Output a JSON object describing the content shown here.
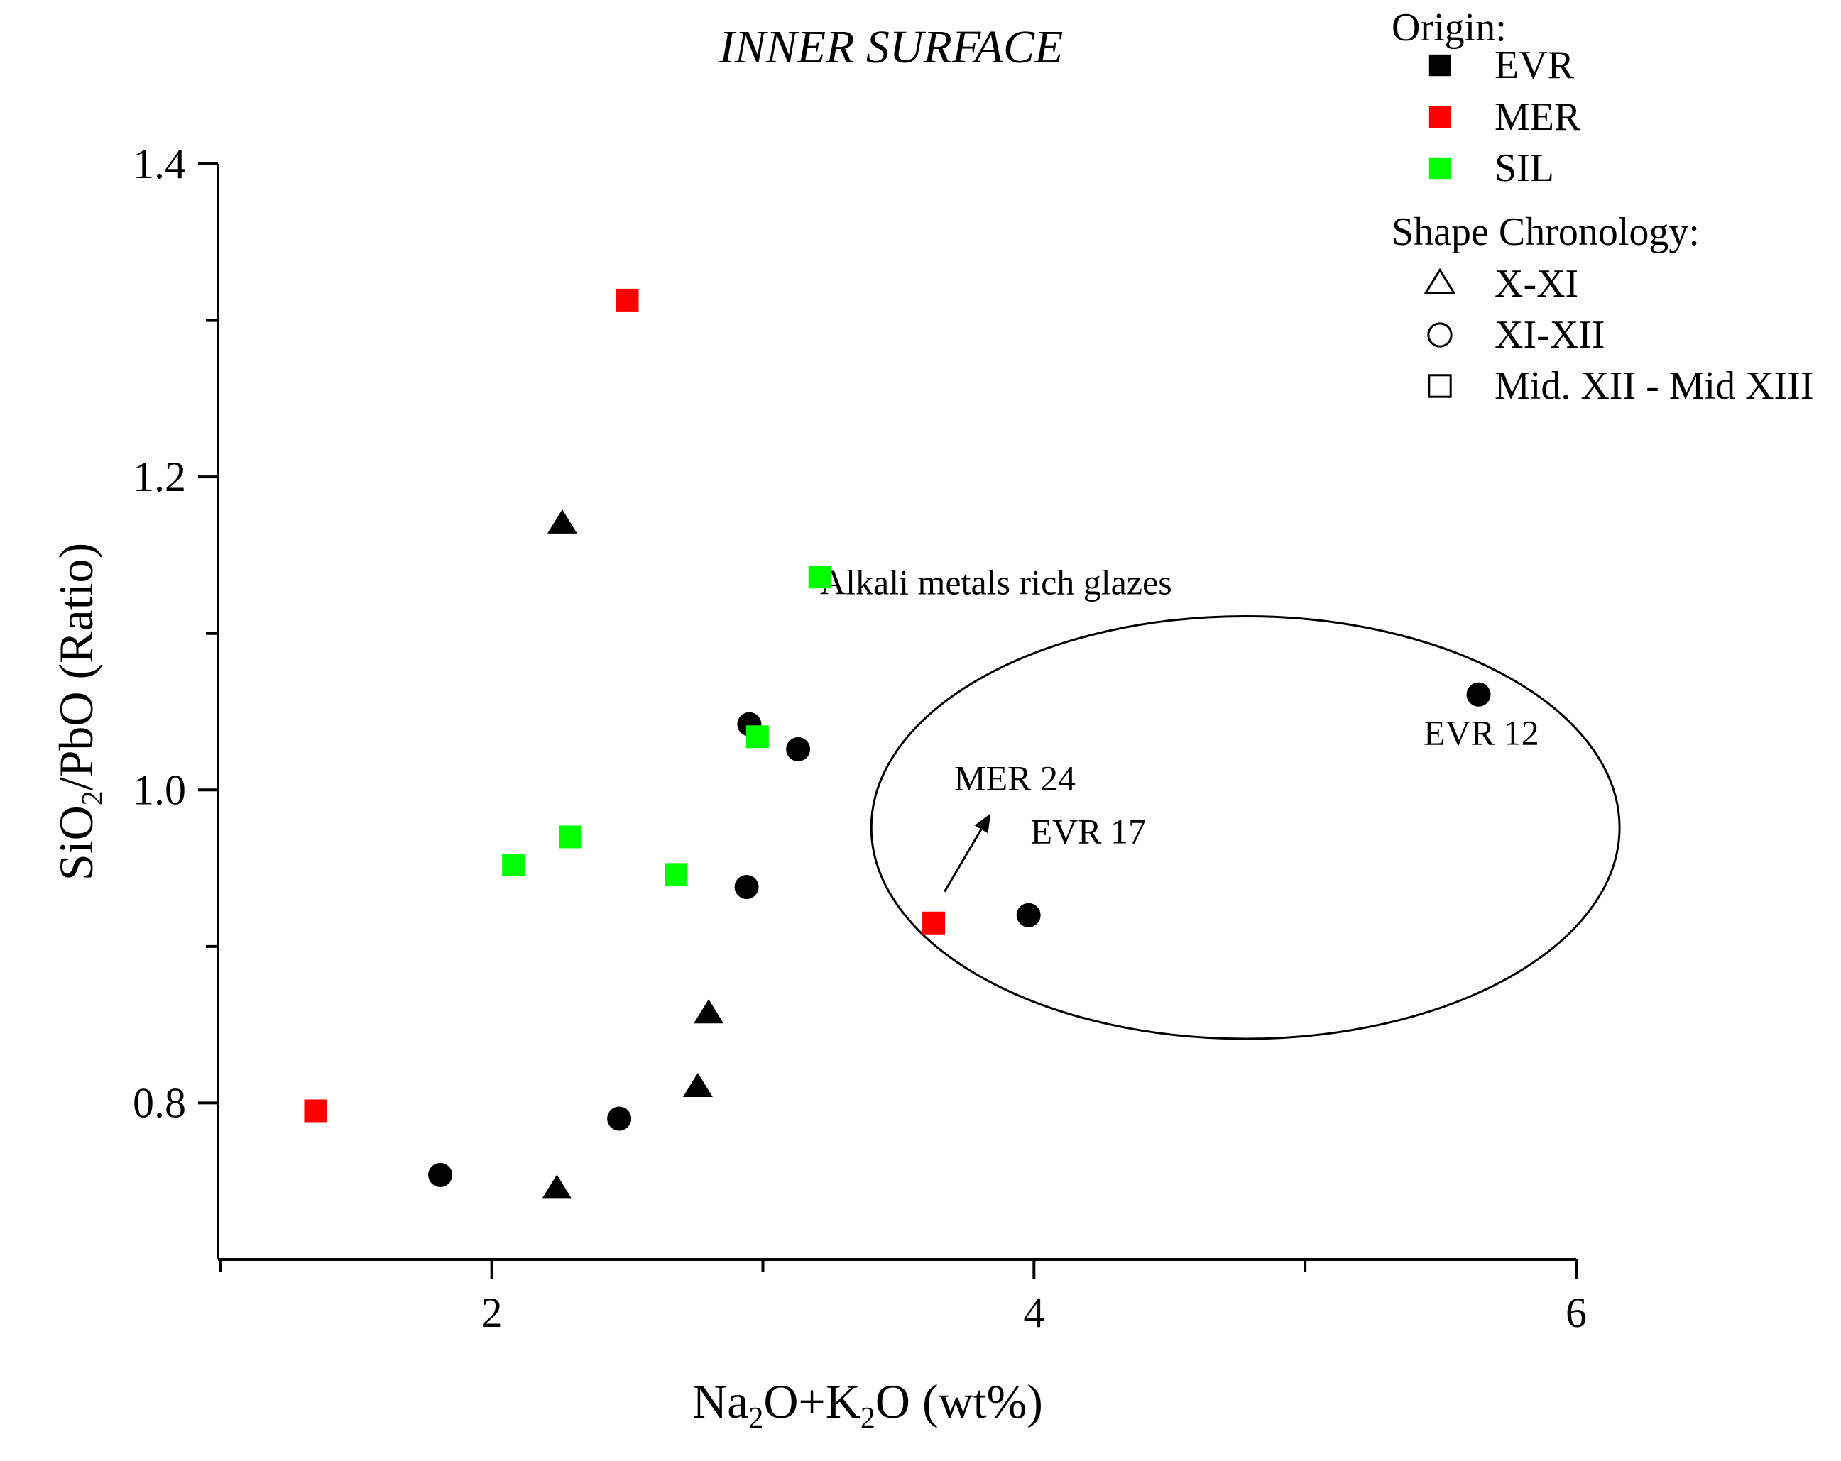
{
  "chart_data": {
    "type": "scatter",
    "title": "INNER SURFACE",
    "xlabel": {
      "parts": [
        "Na",
        "2",
        "O+K",
        "2",
        "O (wt%)"
      ]
    },
    "ylabel": {
      "parts": [
        "SiO",
        "2",
        "/PbO (Ratio)"
      ]
    },
    "xlim": [
      0.99,
      6.0
    ],
    "ylim": [
      0.7,
      1.4
    ],
    "x_ticks": [
      {
        "value": 2,
        "label": "2"
      },
      {
        "value": 4,
        "label": "4"
      },
      {
        "value": 6,
        "label": "6"
      }
    ],
    "x_minor_ticks": [
      1,
      3,
      5
    ],
    "y_ticks": [
      {
        "value": 0.8,
        "label": "0.8"
      },
      {
        "value": 1.0,
        "label": "1.0"
      },
      {
        "value": 1.2,
        "label": "1.2"
      },
      {
        "value": 1.4,
        "label": "1.4"
      }
    ],
    "y_minor_ticks": [
      0.9,
      1.1,
      1.3
    ],
    "colors": {
      "EVR": "#000000",
      "MER": "#ff0000",
      "SIL": "#00ff00"
    },
    "points": [
      {
        "origin": "EVR",
        "chronology": "X-XI",
        "x": 2.26,
        "y": 1.17
      },
      {
        "origin": "EVR",
        "chronology": "X-XI",
        "x": 2.8,
        "y": 0.857
      },
      {
        "origin": "EVR",
        "chronology": "X-XI",
        "x": 2.76,
        "y": 0.81
      },
      {
        "origin": "EVR",
        "chronology": "X-XI",
        "x": 2.24,
        "y": 0.745
      },
      {
        "origin": "EVR",
        "chronology": "XI-XII",
        "x": 2.95,
        "y": 1.042
      },
      {
        "origin": "EVR",
        "chronology": "XI-XII",
        "x": 3.13,
        "y": 1.026
      },
      {
        "origin": "EVR",
        "chronology": "XI-XII",
        "x": 2.94,
        "y": 0.938
      },
      {
        "origin": "EVR",
        "chronology": "XI-XII",
        "x": 2.47,
        "y": 0.79
      },
      {
        "origin": "EVR",
        "chronology": "XI-XII",
        "x": 1.81,
        "y": 0.754
      },
      {
        "origin": "EVR",
        "chronology": "XI-XII",
        "x": 3.98,
        "y": 0.92
      },
      {
        "origin": "EVR",
        "chronology": "XI-XII",
        "x": 5.64,
        "y": 1.061
      },
      {
        "origin": "MER",
        "chronology": "Mid. XII - Mid XIII",
        "x": 2.5,
        "y": 1.313
      },
      {
        "origin": "MER",
        "chronology": "Mid. XII - Mid XIII",
        "x": 3.63,
        "y": 0.915
      },
      {
        "origin": "MER",
        "chronology": "Mid. XII - Mid XIII",
        "x": 1.35,
        "y": 0.795
      },
      {
        "origin": "SIL",
        "chronology": "Mid. XII - Mid XIII",
        "x": 3.21,
        "y": 1.136
      },
      {
        "origin": "SIL",
        "chronology": "Mid. XII - Mid XIII",
        "x": 2.98,
        "y": 1.034
      },
      {
        "origin": "SIL",
        "chronology": "Mid. XII - Mid XIII",
        "x": 2.29,
        "y": 0.97
      },
      {
        "origin": "SIL",
        "chronology": "Mid. XII - Mid XIII",
        "x": 2.08,
        "y": 0.952
      },
      {
        "origin": "SIL",
        "chronology": "Mid. XII - Mid XIII",
        "x": 2.68,
        "y": 0.946
      }
    ],
    "annotations": [
      {
        "id": "group",
        "text": "Alkali metals rich glazes",
        "x": 3.86,
        "y": 1.125
      },
      {
        "id": "evr12",
        "text": "EVR 12",
        "x": 5.65,
        "y": 1.029
      },
      {
        "id": "evr17",
        "text": "EVR 17",
        "x": 4.2,
        "y": 0.966
      },
      {
        "id": "mer24",
        "text": "MER 24",
        "x": 3.93,
        "y": 1.0
      }
    ],
    "ellipse": {
      "cx": 4.78,
      "cy": 0.976,
      "rx": 1.38,
      "ry": 0.135
    },
    "arrow": {
      "from": [
        3.67,
        0.935
      ],
      "to": [
        3.84,
        0.985
      ]
    },
    "legend": {
      "position": "top-right",
      "origin_title": "Origin:",
      "origin_items": [
        {
          "label": "EVR",
          "key": "EVR"
        },
        {
          "label": "MER",
          "key": "MER"
        },
        {
          "label": "SIL",
          "key": "SIL"
        }
      ],
      "shape_title": "Shape  Chronology:",
      "shape_items": [
        {
          "label": "X-XI",
          "shape": "triangle"
        },
        {
          "label": "XI-XII",
          "shape": "circle"
        },
        {
          "label": "Mid. XII - Mid XIII",
          "shape": "square"
        }
      ]
    }
  }
}
